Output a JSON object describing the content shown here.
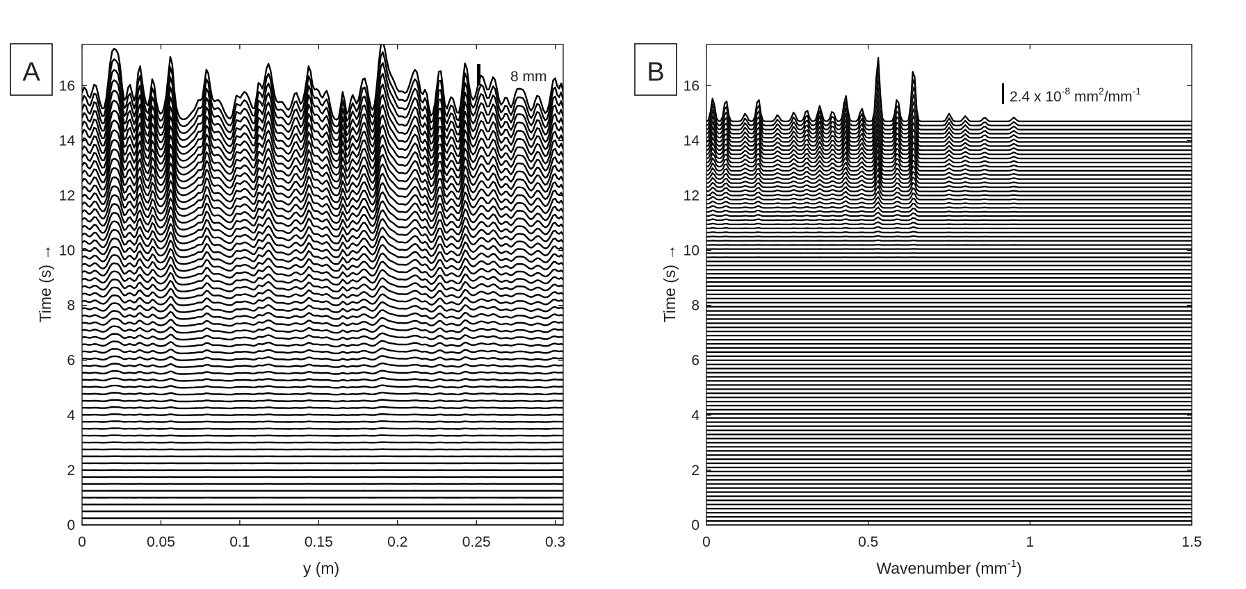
{
  "chart_data": [
    {
      "type": "line",
      "panel_label": "A",
      "xlabel": "y (m)",
      "ylabel": "Time (s) →",
      "xlim": [
        0,
        0.305
      ],
      "ylim": [
        0,
        17.5
      ],
      "x_ticks": [
        0,
        0.05,
        0.1,
        0.15,
        0.2,
        0.25,
        0.3
      ],
      "x_tick_labels": [
        "0",
        "0.05",
        "0.1",
        "0.15",
        "0.2",
        "0.25",
        "0.3"
      ],
      "y_ticks": [
        0,
        2,
        4,
        6,
        8,
        10,
        12,
        14,
        16
      ],
      "y_tick_labels": [
        "0",
        "2",
        "4",
        "6",
        "8",
        "10",
        "12",
        "14",
        "16"
      ],
      "scale_bar_label": "8 mm",
      "trace_time_start": 0.0,
      "trace_time_end": 14.7,
      "trace_time_step": 0.25,
      "grid": false,
      "legend": "none",
      "trace_color": "#000000",
      "gap_color": "#ffffff"
    },
    {
      "type": "line",
      "panel_label": "B",
      "xlabel": "Wavenumber (mm",
      "xlabel_sup": "-1",
      "xlabel_end": ")",
      "ylabel": "Time (s) →",
      "xlim": [
        0,
        1.5
      ],
      "ylim": [
        0,
        17.5
      ],
      "x_ticks": [
        0,
        0.5,
        1,
        1.5
      ],
      "x_tick_labels": [
        "0",
        "0.5",
        "1",
        "1.5"
      ],
      "y_ticks": [
        0,
        2,
        4,
        6,
        8,
        10,
        12,
        14,
        16
      ],
      "y_tick_labels": [
        "0",
        "2",
        "4",
        "6",
        "8",
        "10",
        "12",
        "14",
        "16"
      ],
      "scale_bar_label_parts": [
        "2.4 x 10",
        "-8",
        " mm",
        "2",
        "/mm",
        "-1"
      ],
      "trace_time_start": 0.0,
      "trace_time_end": 14.7,
      "trace_time_step": 0.15,
      "grid": false,
      "legend": "none",
      "trace_color": "#000000",
      "gap_color": "#ffffff"
    }
  ]
}
